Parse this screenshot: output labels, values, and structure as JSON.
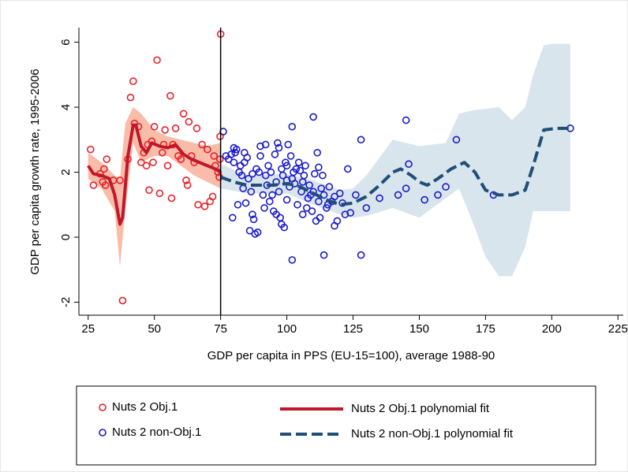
{
  "chart_data": {
    "type": "scatter",
    "x_label": "GDP per capita in PPS (EU-15=100), average 1988-90",
    "y_label": "GDP per capita growth rate, 1995-2006",
    "xlim": [
      21.5,
      227
    ],
    "ylim": [
      -2.4,
      6.45
    ],
    "xticks": [
      25,
      50,
      75,
      100,
      125,
      150,
      175,
      200,
      225
    ],
    "yticks": [
      -2,
      0,
      2,
      4,
      6
    ],
    "xline": 75,
    "series": [
      {
        "name": "Nuts 2 Obj.1",
        "kind": "scatter",
        "color": "#e8202a",
        "x": [
          25.9,
          27,
          29.5,
          30.5,
          31,
          31.5,
          32,
          34.5,
          37,
          38,
          40,
          41,
          42,
          42.5,
          44,
          45,
          46,
          47,
          47.5,
          48,
          49,
          49.5,
          50,
          51,
          52,
          53,
          53.5,
          54,
          55,
          56,
          56.5,
          57,
          58,
          59,
          60,
          61,
          62,
          62.5,
          63,
          64,
          65,
          66,
          66.5,
          68,
          69,
          70,
          71,
          72,
          72.5,
          73,
          74,
          74.5,
          74.7,
          74.8,
          75
        ],
        "values": [
          2.7,
          1.6,
          1.95,
          1.7,
          2.1,
          1.6,
          2.4,
          1.75,
          1.75,
          -1.95,
          2.4,
          4.3,
          4.8,
          3.5,
          3.4,
          2.3,
          2.6,
          2.2,
          2.85,
          1.45,
          2.95,
          2.3,
          3.4,
          5.45,
          1.35,
          2.6,
          2.85,
          3.3,
          2.2,
          4.35,
          1.2,
          2.85,
          3.35,
          2.5,
          2.4,
          3.8,
          1.75,
          1.6,
          3.55,
          2.5,
          2.3,
          3.35,
          1.0,
          2.85,
          0.95,
          2.7,
          1.1,
          1.25,
          2.5,
          2.2,
          2.0,
          1.85,
          2.4,
          3.1,
          6.25
        ]
      },
      {
        "name": "Nuts 2 non-Obj.1",
        "kind": "scatter",
        "color": "#1a1acc",
        "x": [
          76,
          77,
          78,
          79,
          80,
          80.5,
          79.5,
          80,
          81,
          81.5,
          82,
          82.5,
          83,
          83.5,
          84,
          84.5,
          85,
          85.5,
          86,
          86.5,
          87,
          87.5,
          87,
          88,
          88.5,
          89,
          89.5,
          90,
          90,
          91,
          91.5,
          92,
          92.5,
          93,
          93.5,
          94,
          94.5,
          95,
          95.5,
          96,
          96.5,
          97,
          97,
          97.5,
          98,
          98.5,
          99,
          99.5,
          100,
          100,
          100.5,
          101,
          101.5,
          102,
          102.5,
          103,
          103.5,
          104,
          104.5,
          105,
          105.5,
          106,
          106.5,
          107,
          107.5,
          108,
          108.5,
          109,
          109.5,
          110,
          110.5,
          111,
          111.5,
          112,
          112.5,
          113,
          113.5,
          114,
          115,
          115.5,
          116,
          117,
          118,
          119,
          120,
          121,
          122,
          123,
          124,
          126,
          130,
          135,
          142,
          145,
          146,
          145,
          152,
          157,
          160,
          164,
          178,
          207,
          128,
          114,
          102,
          110,
          128,
          102,
          98,
          96,
          92,
          84,
          118,
          112,
          106,
          100
        ],
        "values": [
          3.25,
          2.5,
          2.4,
          2.55,
          2.75,
          2.6,
          0.6,
          2.3,
          2.7,
          1.0,
          2.0,
          2.2,
          1.9,
          1.5,
          2.6,
          1.05,
          2.45,
          1.8,
          0.2,
          1.4,
          0.7,
          0.55,
          1.95,
          0.1,
          2.1,
          0.15,
          2.0,
          2.5,
          2.8,
          1.3,
          0.9,
          2.85,
          1.6,
          2.2,
          1.1,
          2.0,
          1.3,
          0.8,
          2.55,
          0.7,
          2.9,
          2.75,
          1.4,
          0.6,
          0.4,
          1.9,
          0.3,
          2.3,
          2.2,
          1.15,
          2.85,
          1.55,
          2.5,
          1.8,
          2.0,
          1.65,
          2.1,
          1.0,
          2.3,
          2.05,
          1.4,
          1.7,
          1.9,
          2.2,
          0.9,
          1.2,
          1.6,
          1.3,
          0.8,
          1.4,
          1.95,
          0.5,
          2.6,
          1.1,
          0.6,
          1.5,
          1.9,
          1.3,
          0.9,
          1.0,
          1.55,
          1.1,
          1.25,
          0.5,
          1.35,
          1.05,
          0.7,
          2.1,
          0.75,
          1.3,
          0.9,
          1.2,
          1.3,
          1.5,
          2.25,
          3.6,
          1.15,
          1.3,
          1.55,
          3.0,
          1.3,
          3.35,
          -0.55,
          -0.55,
          -0.7,
          3.7,
          3.0,
          3.4,
          2.1,
          1.7,
          1.9,
          2.3,
          0.35,
          2.15,
          0.7,
          1.75
        ]
      },
      {
        "name": "Nuts 2 Obj.1 polynomial fit",
        "kind": "line",
        "color": "#c0182a",
        "dash": false,
        "band_color": "#f9bca8",
        "x": [
          25,
          27,
          30,
          33,
          35,
          37,
          38,
          40,
          42,
          43,
          45,
          47,
          49,
          52,
          55,
          58,
          61,
          64,
          67,
          70,
          73,
          75
        ],
        "values": [
          2.2,
          1.95,
          1.9,
          1.8,
          1.3,
          0.4,
          0.6,
          2.5,
          3.45,
          3.45,
          2.8,
          2.6,
          2.9,
          2.8,
          2.75,
          2.85,
          2.55,
          2.4,
          2.3,
          2.2,
          2.1,
          2.0
        ],
        "band_x": [
          25,
          30,
          35,
          37,
          39,
          42,
          45,
          50,
          55,
          60,
          65,
          70,
          75
        ],
        "band_lower": [
          1.8,
          1.5,
          0.8,
          -0.9,
          0.8,
          2.9,
          2.3,
          2.5,
          2.5,
          2.2,
          1.9,
          1.7,
          1.5
        ],
        "band_upper": [
          2.6,
          2.3,
          1.9,
          1.8,
          3.5,
          4.0,
          3.8,
          3.3,
          3.1,
          3.0,
          2.9,
          2.8,
          2.9
        ]
      },
      {
        "name": "Nuts 2 non-Obj.1 polynomial fit",
        "kind": "line",
        "color": "#1f4e79",
        "dash": true,
        "band_color": "#d8e5ec",
        "x": [
          75,
          80,
          85,
          90,
          95,
          100,
          105,
          110,
          115,
          120,
          125,
          130,
          135,
          140,
          143,
          147,
          150,
          153,
          157,
          162,
          167,
          171,
          175,
          180,
          185,
          190,
          193,
          197,
          202,
          207
        ],
        "values": [
          1.85,
          1.7,
          1.6,
          1.6,
          1.6,
          1.65,
          1.55,
          1.35,
          1.15,
          1.0,
          1.05,
          1.25,
          1.6,
          2.0,
          2.1,
          1.9,
          1.7,
          1.6,
          1.8,
          2.1,
          2.3,
          2.0,
          1.45,
          1.3,
          1.3,
          1.45,
          2.2,
          3.3,
          3.35,
          3.35
        ],
        "band_x": [
          75,
          85,
          100,
          110,
          120,
          125,
          130,
          140,
          150,
          160,
          165,
          170,
          175,
          180,
          185,
          190,
          193,
          197,
          200,
          207
        ],
        "band_lower": [
          1.5,
          1.35,
          1.35,
          1.0,
          0.7,
          0.6,
          0.65,
          0.9,
          0.6,
          1.2,
          1.5,
          0.5,
          -0.6,
          -1.2,
          -1.2,
          -0.3,
          0.8,
          0.8,
          0.8,
          0.8
        ],
        "band_upper": [
          2.25,
          1.9,
          1.95,
          1.75,
          1.45,
          1.5,
          1.9,
          3.0,
          2.8,
          2.9,
          3.8,
          3.9,
          3.95,
          4.0,
          3.6,
          4.0,
          5.0,
          5.9,
          5.95,
          5.95
        ]
      }
    ]
  }
}
